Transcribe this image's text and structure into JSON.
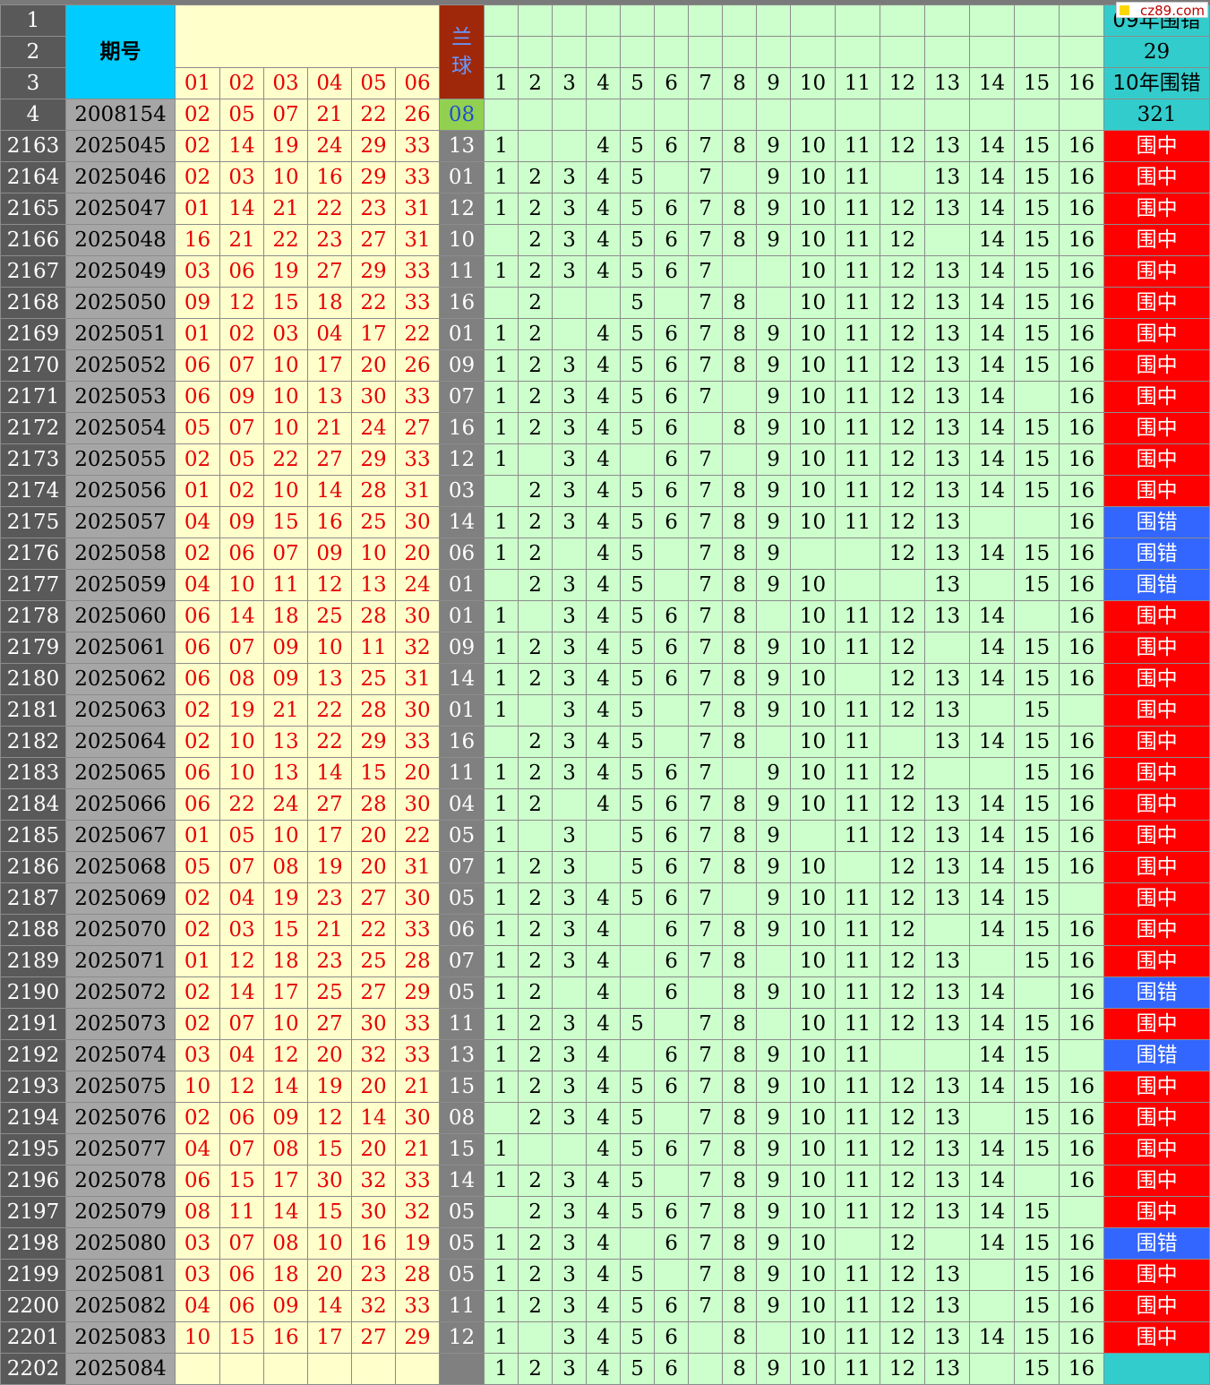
{
  "header": {
    "issue_label": "期号",
    "blue_label": "兰球",
    "red_headers": [
      "01",
      "02",
      "03",
      "04",
      "05",
      "06"
    ],
    "green_headers": [
      "1",
      "2",
      "3",
      "4",
      "5",
      "6",
      "7",
      "8",
      "9",
      "10",
      "11",
      "12",
      "13",
      "14",
      "15",
      "16"
    ],
    "row_numbers": [
      "1",
      "2",
      "3",
      "4"
    ],
    "stat_label_09": "09年围错",
    "stat_value_09": "29",
    "stat_label_10": "10年围错",
    "stat_value_10": "321",
    "first_issue": "2008154",
    "first_reds": [
      "02",
      "05",
      "07",
      "21",
      "22",
      "26"
    ],
    "first_blue": "08"
  },
  "watermark": "cz89.com",
  "colors": {
    "hit": "#ff0000",
    "miss": "#3366ff",
    "issue_bg": "#00ccff",
    "green_bg": "#ccffcc",
    "red_text": "#e60000"
  },
  "rows": [
    {
      "n": "2163",
      "issue": "2025045",
      "reds": [
        "02",
        "14",
        "19",
        "24",
        "29",
        "33"
      ],
      "blue": "13",
      "g": [
        "1",
        "",
        "",
        "4",
        "5",
        "6",
        "7",
        "8",
        "9",
        "10",
        "11",
        "12",
        "13",
        "14",
        "15",
        "16"
      ],
      "status": "围中",
      "type": "hit"
    },
    {
      "n": "2164",
      "issue": "2025046",
      "reds": [
        "02",
        "03",
        "10",
        "16",
        "29",
        "33"
      ],
      "blue": "01",
      "g": [
        "1",
        "2",
        "3",
        "4",
        "5",
        "",
        "7",
        "",
        "9",
        "10",
        "11",
        "",
        "13",
        "14",
        "15",
        "16"
      ],
      "status": "围中",
      "type": "hit"
    },
    {
      "n": "2165",
      "issue": "2025047",
      "reds": [
        "01",
        "14",
        "21",
        "22",
        "23",
        "31"
      ],
      "blue": "12",
      "g": [
        "1",
        "2",
        "3",
        "4",
        "5",
        "6",
        "7",
        "8",
        "9",
        "10",
        "11",
        "12",
        "13",
        "14",
        "15",
        "16"
      ],
      "status": "围中",
      "type": "hit"
    },
    {
      "n": "2166",
      "issue": "2025048",
      "reds": [
        "16",
        "21",
        "22",
        "23",
        "27",
        "31"
      ],
      "blue": "10",
      "g": [
        "",
        "2",
        "3",
        "4",
        "5",
        "6",
        "7",
        "8",
        "9",
        "10",
        "11",
        "12",
        "",
        "14",
        "15",
        "16"
      ],
      "status": "围中",
      "type": "hit"
    },
    {
      "n": "2167",
      "issue": "2025049",
      "reds": [
        "03",
        "06",
        "19",
        "27",
        "29",
        "33"
      ],
      "blue": "11",
      "g": [
        "1",
        "2",
        "3",
        "4",
        "5",
        "6",
        "7",
        "",
        "",
        "10",
        "11",
        "12",
        "13",
        "14",
        "15",
        "16"
      ],
      "status": "围中",
      "type": "hit"
    },
    {
      "n": "2168",
      "issue": "2025050",
      "reds": [
        "09",
        "12",
        "15",
        "18",
        "22",
        "33"
      ],
      "blue": "16",
      "g": [
        "",
        "2",
        "",
        "",
        "5",
        "",
        "7",
        "8",
        "",
        "10",
        "11",
        "12",
        "13",
        "14",
        "15",
        "16"
      ],
      "status": "围中",
      "type": "hit"
    },
    {
      "n": "2169",
      "issue": "2025051",
      "reds": [
        "01",
        "02",
        "03",
        "04",
        "17",
        "22"
      ],
      "blue": "01",
      "g": [
        "1",
        "2",
        "",
        "4",
        "5",
        "6",
        "7",
        "8",
        "9",
        "10",
        "11",
        "12",
        "13",
        "14",
        "15",
        "16"
      ],
      "status": "围中",
      "type": "hit"
    },
    {
      "n": "2170",
      "issue": "2025052",
      "reds": [
        "06",
        "07",
        "10",
        "17",
        "20",
        "26"
      ],
      "blue": "09",
      "g": [
        "1",
        "2",
        "3",
        "4",
        "5",
        "6",
        "7",
        "8",
        "9",
        "10",
        "11",
        "12",
        "13",
        "14",
        "15",
        "16"
      ],
      "status": "围中",
      "type": "hit"
    },
    {
      "n": "2171",
      "issue": "2025053",
      "reds": [
        "06",
        "09",
        "10",
        "13",
        "30",
        "33"
      ],
      "blue": "07",
      "g": [
        "1",
        "2",
        "3",
        "4",
        "5",
        "6",
        "7",
        "",
        "9",
        "10",
        "11",
        "12",
        "13",
        "14",
        "",
        "16"
      ],
      "status": "围中",
      "type": "hit"
    },
    {
      "n": "2172",
      "issue": "2025054",
      "reds": [
        "05",
        "07",
        "10",
        "21",
        "24",
        "27"
      ],
      "blue": "16",
      "g": [
        "1",
        "2",
        "3",
        "4",
        "5",
        "6",
        "",
        "8",
        "9",
        "10",
        "11",
        "12",
        "13",
        "14",
        "15",
        "16"
      ],
      "status": "围中",
      "type": "hit"
    },
    {
      "n": "2173",
      "issue": "2025055",
      "reds": [
        "02",
        "05",
        "22",
        "27",
        "29",
        "33"
      ],
      "blue": "12",
      "g": [
        "1",
        "",
        "3",
        "4",
        "",
        "6",
        "7",
        "",
        "9",
        "10",
        "11",
        "12",
        "13",
        "14",
        "15",
        "16"
      ],
      "status": "围中",
      "type": "hit"
    },
    {
      "n": "2174",
      "issue": "2025056",
      "reds": [
        "01",
        "02",
        "10",
        "14",
        "28",
        "31"
      ],
      "blue": "03",
      "g": [
        "",
        "2",
        "3",
        "4",
        "5",
        "6",
        "7",
        "8",
        "9",
        "10",
        "11",
        "12",
        "13",
        "14",
        "15",
        "16"
      ],
      "status": "围中",
      "type": "hit"
    },
    {
      "n": "2175",
      "issue": "2025057",
      "reds": [
        "04",
        "09",
        "15",
        "16",
        "25",
        "30"
      ],
      "blue": "14",
      "g": [
        "1",
        "2",
        "3",
        "4",
        "5",
        "6",
        "7",
        "8",
        "9",
        "10",
        "11",
        "12",
        "13",
        "",
        "",
        "16"
      ],
      "status": "围错",
      "type": "miss"
    },
    {
      "n": "2176",
      "issue": "2025058",
      "reds": [
        "02",
        "06",
        "07",
        "09",
        "10",
        "20"
      ],
      "blue": "06",
      "g": [
        "1",
        "2",
        "",
        "4",
        "5",
        "",
        "7",
        "8",
        "9",
        "",
        "",
        "12",
        "13",
        "14",
        "15",
        "16"
      ],
      "status": "围错",
      "type": "miss"
    },
    {
      "n": "2177",
      "issue": "2025059",
      "reds": [
        "04",
        "10",
        "11",
        "12",
        "13",
        "24"
      ],
      "blue": "01",
      "g": [
        "",
        "2",
        "3",
        "4",
        "5",
        "",
        "7",
        "8",
        "9",
        "10",
        "",
        "",
        "13",
        "",
        "15",
        "16"
      ],
      "status": "围错",
      "type": "miss"
    },
    {
      "n": "2178",
      "issue": "2025060",
      "reds": [
        "06",
        "14",
        "18",
        "25",
        "28",
        "30"
      ],
      "blue": "01",
      "g": [
        "1",
        "",
        "3",
        "4",
        "5",
        "6",
        "7",
        "8",
        "",
        "10",
        "11",
        "12",
        "13",
        "14",
        "",
        "16"
      ],
      "status": "围中",
      "type": "hit"
    },
    {
      "n": "2179",
      "issue": "2025061",
      "reds": [
        "06",
        "07",
        "09",
        "10",
        "11",
        "32"
      ],
      "blue": "09",
      "g": [
        "1",
        "2",
        "3",
        "4",
        "5",
        "6",
        "7",
        "8",
        "9",
        "10",
        "11",
        "12",
        "",
        "14",
        "15",
        "16"
      ],
      "status": "围中",
      "type": "hit"
    },
    {
      "n": "2180",
      "issue": "2025062",
      "reds": [
        "06",
        "08",
        "09",
        "13",
        "25",
        "31"
      ],
      "blue": "14",
      "g": [
        "1",
        "2",
        "3",
        "4",
        "5",
        "6",
        "7",
        "8",
        "9",
        "10",
        "",
        "12",
        "13",
        "14",
        "15",
        "16"
      ],
      "status": "围中",
      "type": "hit"
    },
    {
      "n": "2181",
      "issue": "2025063",
      "reds": [
        "02",
        "19",
        "21",
        "22",
        "28",
        "30"
      ],
      "blue": "01",
      "g": [
        "1",
        "",
        "3",
        "4",
        "5",
        "",
        "7",
        "8",
        "9",
        "10",
        "11",
        "12",
        "13",
        "",
        "15",
        ""
      ],
      "status": "围中",
      "type": "hit"
    },
    {
      "n": "2182",
      "issue": "2025064",
      "reds": [
        "02",
        "10",
        "13",
        "22",
        "29",
        "33"
      ],
      "blue": "16",
      "g": [
        "",
        "2",
        "3",
        "4",
        "5",
        "",
        "7",
        "8",
        "",
        "10",
        "11",
        "",
        "13",
        "14",
        "15",
        "16"
      ],
      "status": "围中",
      "type": "hit"
    },
    {
      "n": "2183",
      "issue": "2025065",
      "reds": [
        "06",
        "10",
        "13",
        "14",
        "15",
        "20"
      ],
      "blue": "11",
      "g": [
        "1",
        "2",
        "3",
        "4",
        "5",
        "6",
        "7",
        "",
        "9",
        "10",
        "11",
        "12",
        "",
        "",
        "15",
        "16"
      ],
      "status": "围中",
      "type": "hit"
    },
    {
      "n": "2184",
      "issue": "2025066",
      "reds": [
        "06",
        "22",
        "24",
        "27",
        "28",
        "30"
      ],
      "blue": "04",
      "g": [
        "1",
        "2",
        "",
        "4",
        "5",
        "6",
        "7",
        "8",
        "9",
        "10",
        "11",
        "12",
        "13",
        "14",
        "15",
        "16"
      ],
      "status": "围中",
      "type": "hit"
    },
    {
      "n": "2185",
      "issue": "2025067",
      "reds": [
        "01",
        "05",
        "10",
        "17",
        "20",
        "22"
      ],
      "blue": "05",
      "g": [
        "1",
        "",
        "3",
        "",
        "5",
        "6",
        "7",
        "8",
        "9",
        "",
        "11",
        "12",
        "13",
        "14",
        "15",
        "16"
      ],
      "status": "围中",
      "type": "hit"
    },
    {
      "n": "2186",
      "issue": "2025068",
      "reds": [
        "05",
        "07",
        "08",
        "19",
        "20",
        "31"
      ],
      "blue": "07",
      "g": [
        "1",
        "2",
        "3",
        "",
        "5",
        "6",
        "7",
        "8",
        "9",
        "10",
        "",
        "12",
        "13",
        "14",
        "15",
        "16"
      ],
      "status": "围中",
      "type": "hit"
    },
    {
      "n": "2187",
      "issue": "2025069",
      "reds": [
        "02",
        "04",
        "19",
        "23",
        "27",
        "30"
      ],
      "blue": "05",
      "g": [
        "1",
        "2",
        "3",
        "4",
        "5",
        "6",
        "7",
        "",
        "9",
        "10",
        "11",
        "12",
        "13",
        "14",
        "15",
        ""
      ],
      "status": "围中",
      "type": "hit"
    },
    {
      "n": "2188",
      "issue": "2025070",
      "reds": [
        "02",
        "03",
        "15",
        "21",
        "22",
        "33"
      ],
      "blue": "06",
      "g": [
        "1",
        "2",
        "3",
        "4",
        "",
        "6",
        "7",
        "8",
        "9",
        "10",
        "11",
        "12",
        "",
        "14",
        "15",
        "16"
      ],
      "status": "围中",
      "type": "hit"
    },
    {
      "n": "2189",
      "issue": "2025071",
      "reds": [
        "01",
        "12",
        "18",
        "23",
        "25",
        "28"
      ],
      "blue": "07",
      "g": [
        "1",
        "2",
        "3",
        "4",
        "",
        "6",
        "7",
        "8",
        "",
        "10",
        "11",
        "12",
        "13",
        "",
        "15",
        "16"
      ],
      "status": "围中",
      "type": "hit"
    },
    {
      "n": "2190",
      "issue": "2025072",
      "reds": [
        "02",
        "14",
        "17",
        "25",
        "27",
        "29"
      ],
      "blue": "05",
      "g": [
        "1",
        "2",
        "",
        "4",
        "",
        "6",
        "",
        "8",
        "9",
        "10",
        "11",
        "12",
        "13",
        "14",
        "",
        "16"
      ],
      "status": "围错",
      "type": "miss"
    },
    {
      "n": "2191",
      "issue": "2025073",
      "reds": [
        "02",
        "07",
        "10",
        "27",
        "30",
        "33"
      ],
      "blue": "11",
      "g": [
        "1",
        "2",
        "3",
        "4",
        "5",
        "",
        "7",
        "8",
        "",
        "10",
        "11",
        "12",
        "13",
        "14",
        "15",
        "16"
      ],
      "status": "围中",
      "type": "hit"
    },
    {
      "n": "2192",
      "issue": "2025074",
      "reds": [
        "03",
        "04",
        "12",
        "20",
        "32",
        "33"
      ],
      "blue": "13",
      "g": [
        "1",
        "2",
        "3",
        "4",
        "",
        "6",
        "7",
        "8",
        "9",
        "10",
        "11",
        "",
        "",
        "14",
        "15",
        ""
      ],
      "status": "围错",
      "type": "miss"
    },
    {
      "n": "2193",
      "issue": "2025075",
      "reds": [
        "10",
        "12",
        "14",
        "19",
        "20",
        "21"
      ],
      "blue": "15",
      "g": [
        "1",
        "2",
        "3",
        "4",
        "5",
        "6",
        "7",
        "8",
        "9",
        "10",
        "11",
        "12",
        "13",
        "14",
        "15",
        "16"
      ],
      "status": "围中",
      "type": "hit"
    },
    {
      "n": "2194",
      "issue": "2025076",
      "reds": [
        "02",
        "06",
        "09",
        "12",
        "14",
        "30"
      ],
      "blue": "08",
      "g": [
        "",
        "2",
        "3",
        "4",
        "5",
        "",
        "7",
        "8",
        "9",
        "10",
        "11",
        "12",
        "13",
        "",
        "15",
        "16"
      ],
      "status": "围中",
      "type": "hit"
    },
    {
      "n": "2195",
      "issue": "2025077",
      "reds": [
        "04",
        "07",
        "08",
        "15",
        "20",
        "21"
      ],
      "blue": "15",
      "g": [
        "1",
        "",
        "",
        "4",
        "5",
        "6",
        "7",
        "8",
        "9",
        "10",
        "11",
        "12",
        "13",
        "14",
        "15",
        "16"
      ],
      "status": "围中",
      "type": "hit"
    },
    {
      "n": "2196",
      "issue": "2025078",
      "reds": [
        "06",
        "15",
        "17",
        "30",
        "32",
        "33"
      ],
      "blue": "14",
      "g": [
        "1",
        "2",
        "3",
        "4",
        "5",
        "",
        "7",
        "8",
        "9",
        "10",
        "11",
        "12",
        "13",
        "14",
        "",
        "16"
      ],
      "status": "围中",
      "type": "hit"
    },
    {
      "n": "2197",
      "issue": "2025079",
      "reds": [
        "08",
        "11",
        "14",
        "15",
        "30",
        "32"
      ],
      "blue": "05",
      "g": [
        "",
        "2",
        "3",
        "4",
        "5",
        "6",
        "7",
        "8",
        "9",
        "10",
        "11",
        "12",
        "13",
        "14",
        "15",
        ""
      ],
      "status": "围中",
      "type": "hit"
    },
    {
      "n": "2198",
      "issue": "2025080",
      "reds": [
        "03",
        "07",
        "08",
        "10",
        "16",
        "19"
      ],
      "blue": "05",
      "g": [
        "1",
        "2",
        "3",
        "4",
        "",
        "6",
        "7",
        "8",
        "9",
        "10",
        "",
        "12",
        "",
        "14",
        "15",
        "16"
      ],
      "status": "围错",
      "type": "miss"
    },
    {
      "n": "2199",
      "issue": "2025081",
      "reds": [
        "03",
        "06",
        "18",
        "20",
        "23",
        "28"
      ],
      "blue": "05",
      "g": [
        "1",
        "2",
        "3",
        "4",
        "5",
        "",
        "7",
        "8",
        "9",
        "10",
        "11",
        "12",
        "13",
        "",
        "15",
        "16"
      ],
      "status": "围中",
      "type": "hit"
    },
    {
      "n": "2200",
      "issue": "2025082",
      "reds": [
        "04",
        "06",
        "09",
        "14",
        "32",
        "33"
      ],
      "blue": "11",
      "g": [
        "1",
        "2",
        "3",
        "4",
        "5",
        "6",
        "7",
        "8",
        "9",
        "10",
        "11",
        "12",
        "13",
        "",
        "15",
        "16"
      ],
      "status": "围中",
      "type": "hit"
    },
    {
      "n": "2201",
      "issue": "2025083",
      "reds": [
        "10",
        "15",
        "16",
        "17",
        "27",
        "29"
      ],
      "blue": "12",
      "g": [
        "1",
        "",
        "3",
        "4",
        "5",
        "6",
        "",
        "8",
        "",
        "10",
        "11",
        "12",
        "13",
        "14",
        "15",
        "16"
      ],
      "status": "围中",
      "type": "hit"
    },
    {
      "n": "2202",
      "issue": "2025084",
      "reds": [
        "",
        "",
        "",
        "",
        "",
        ""
      ],
      "blue": "",
      "g": [
        "1",
        "2",
        "3",
        "4",
        "5",
        "6",
        "",
        "8",
        "9",
        "10",
        "11",
        "12",
        "13",
        "",
        "15",
        "16"
      ],
      "status": "",
      "type": "empty"
    }
  ]
}
